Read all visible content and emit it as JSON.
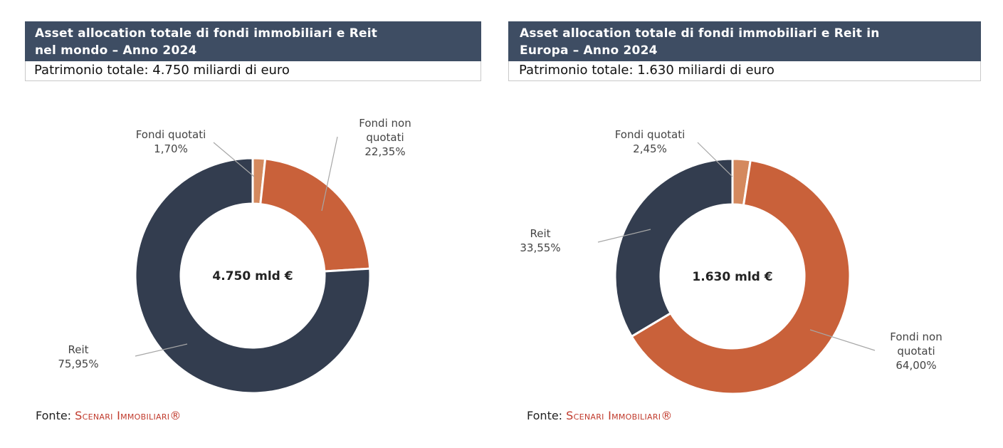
{
  "colors": {
    "title_bg": "#3e4d63",
    "fondi_quotati": "#d4895e",
    "fondi_non_quotati": "#c9613a",
    "reit": "#333d4f",
    "source_red": "#c0392b"
  },
  "panels": [
    {
      "title_line1": "Asset allocation totale di fondi immobiliari e Reit",
      "title_line2": "nel mondo – Anno 2024",
      "subtitle": "Patrimonio totale: 4.750 miliardi di euro",
      "source_label": "Fonte:",
      "source_name": "Scenari Immobiliari®"
    },
    {
      "title_line1": "Asset allocation totale di fondi immobiliari e Reit in",
      "title_line2": "Europa – Anno 2024",
      "subtitle": "Patrimonio totale: 1.630 miliardi di euro",
      "source_label": "Fonte:",
      "source_name": "Scenari Immobiliari®"
    }
  ],
  "chart_data": [
    {
      "type": "pie",
      "center_label": "4.750 mld €",
      "slices": [
        {
          "label_lines": [
            "Fondi quotati"
          ],
          "value": 1.7,
          "value_label": "1,70%",
          "color": "#d4895e"
        },
        {
          "label_lines": [
            "Fondi non",
            "quotati"
          ],
          "value": 22.35,
          "value_label": "22,35%",
          "color": "#c9613a"
        },
        {
          "label_lines": [
            "Reit"
          ],
          "value": 75.95,
          "value_label": "75,95%",
          "color": "#333d4f"
        }
      ]
    },
    {
      "type": "pie",
      "center_label": "1.630 mld €",
      "slices": [
        {
          "label_lines": [
            "Fondi quotati"
          ],
          "value": 2.45,
          "value_label": "2,45%",
          "color": "#d4895e"
        },
        {
          "label_lines": [
            "Fondi non",
            "quotati"
          ],
          "value": 64.0,
          "value_label": "64,00%",
          "color": "#c9613a"
        },
        {
          "label_lines": [
            "Reit"
          ],
          "value": 33.55,
          "value_label": "33,55%",
          "color": "#333d4f"
        }
      ]
    }
  ]
}
